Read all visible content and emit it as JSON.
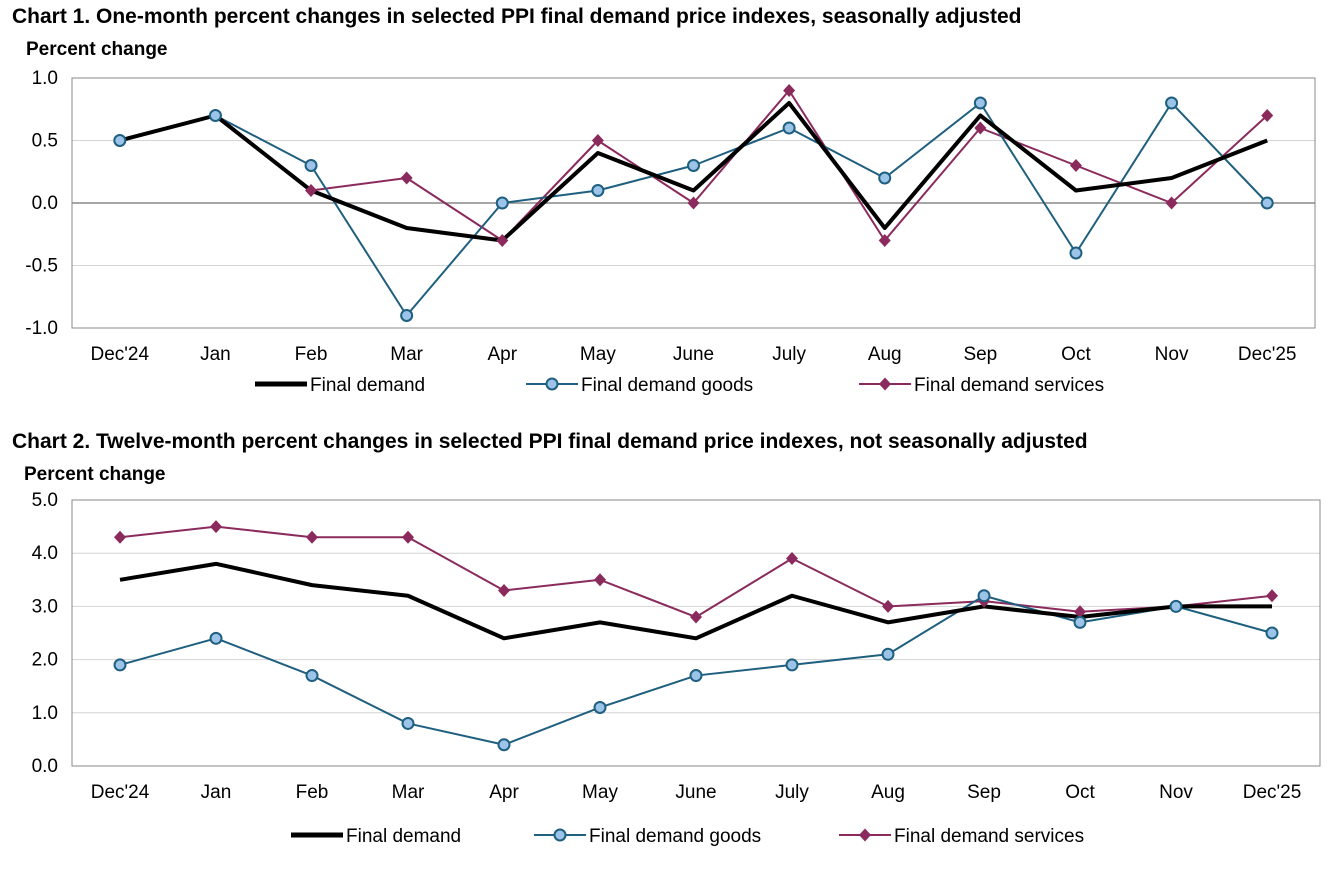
{
  "chart_data": [
    {
      "type": "line",
      "title": "Chart 1. One-month percent changes in selected PPI final demand price indexes, seasonally adjusted",
      "ylabel": "Percent change",
      "xlabel": "",
      "categories": [
        "Dec'24",
        "Jan",
        "Feb",
        "Mar",
        "Apr",
        "May",
        "June",
        "July",
        "Aug",
        "Sep",
        "Oct",
        "Nov",
        "Dec'25"
      ],
      "ylim": [
        -1.0,
        1.0
      ],
      "yticks": [
        "-1.0",
        "-0.5",
        "0.0",
        "0.5",
        "1.0"
      ],
      "grid": true,
      "legend": "bottom",
      "series": [
        {
          "name": "Final demand",
          "color": "#000000",
          "marker": "none",
          "values": [
            0.5,
            0.7,
            0.1,
            -0.2,
            -0.3,
            0.4,
            0.1,
            0.8,
            -0.2,
            0.7,
            0.1,
            0.2,
            0.5
          ]
        },
        {
          "name": "Final demand goods",
          "color": "#1f5f7f",
          "marker": "circle",
          "values": [
            0.5,
            0.7,
            0.3,
            -0.9,
            0.0,
            0.1,
            0.3,
            0.6,
            0.2,
            0.8,
            -0.4,
            0.8,
            0.0
          ]
        },
        {
          "name": "Final demand services",
          "color": "#8b2a5c",
          "marker": "diamond",
          "values": [
            0.5,
            0.7,
            0.1,
            0.2,
            -0.3,
            0.5,
            0.0,
            0.9,
            -0.3,
            0.6,
            0.3,
            0.0,
            0.7
          ]
        }
      ]
    },
    {
      "type": "line",
      "title": "Chart 2. Twelve-month percent changes in selected PPI final demand price indexes, not seasonally adjusted",
      "ylabel": "Percent change",
      "xlabel": "",
      "categories": [
        "Dec'24",
        "Jan",
        "Feb",
        "Mar",
        "Apr",
        "May",
        "June",
        "July",
        "Aug",
        "Sep",
        "Oct",
        "Nov",
        "Dec'25"
      ],
      "ylim": [
        0.0,
        5.0
      ],
      "yticks": [
        "0.0",
        "1.0",
        "2.0",
        "3.0",
        "4.0",
        "5.0"
      ],
      "grid": true,
      "legend": "bottom",
      "series": [
        {
          "name": "Final demand",
          "color": "#000000",
          "marker": "none",
          "values": [
            3.5,
            3.8,
            3.4,
            3.2,
            2.4,
            2.7,
            2.4,
            3.2,
            2.7,
            3.0,
            2.8,
            3.0,
            3.0
          ]
        },
        {
          "name": "Final demand goods",
          "color": "#1f5f7f",
          "marker": "circle",
          "values": [
            1.9,
            2.4,
            1.7,
            0.8,
            0.4,
            1.1,
            1.7,
            1.9,
            2.1,
            3.2,
            2.7,
            3.0,
            2.5
          ]
        },
        {
          "name": "Final demand services",
          "color": "#8b2a5c",
          "marker": "diamond",
          "values": [
            4.3,
            4.5,
            4.3,
            4.3,
            3.3,
            3.5,
            2.8,
            3.9,
            3.0,
            3.1,
            2.9,
            3.0,
            3.2
          ]
        }
      ]
    }
  ]
}
